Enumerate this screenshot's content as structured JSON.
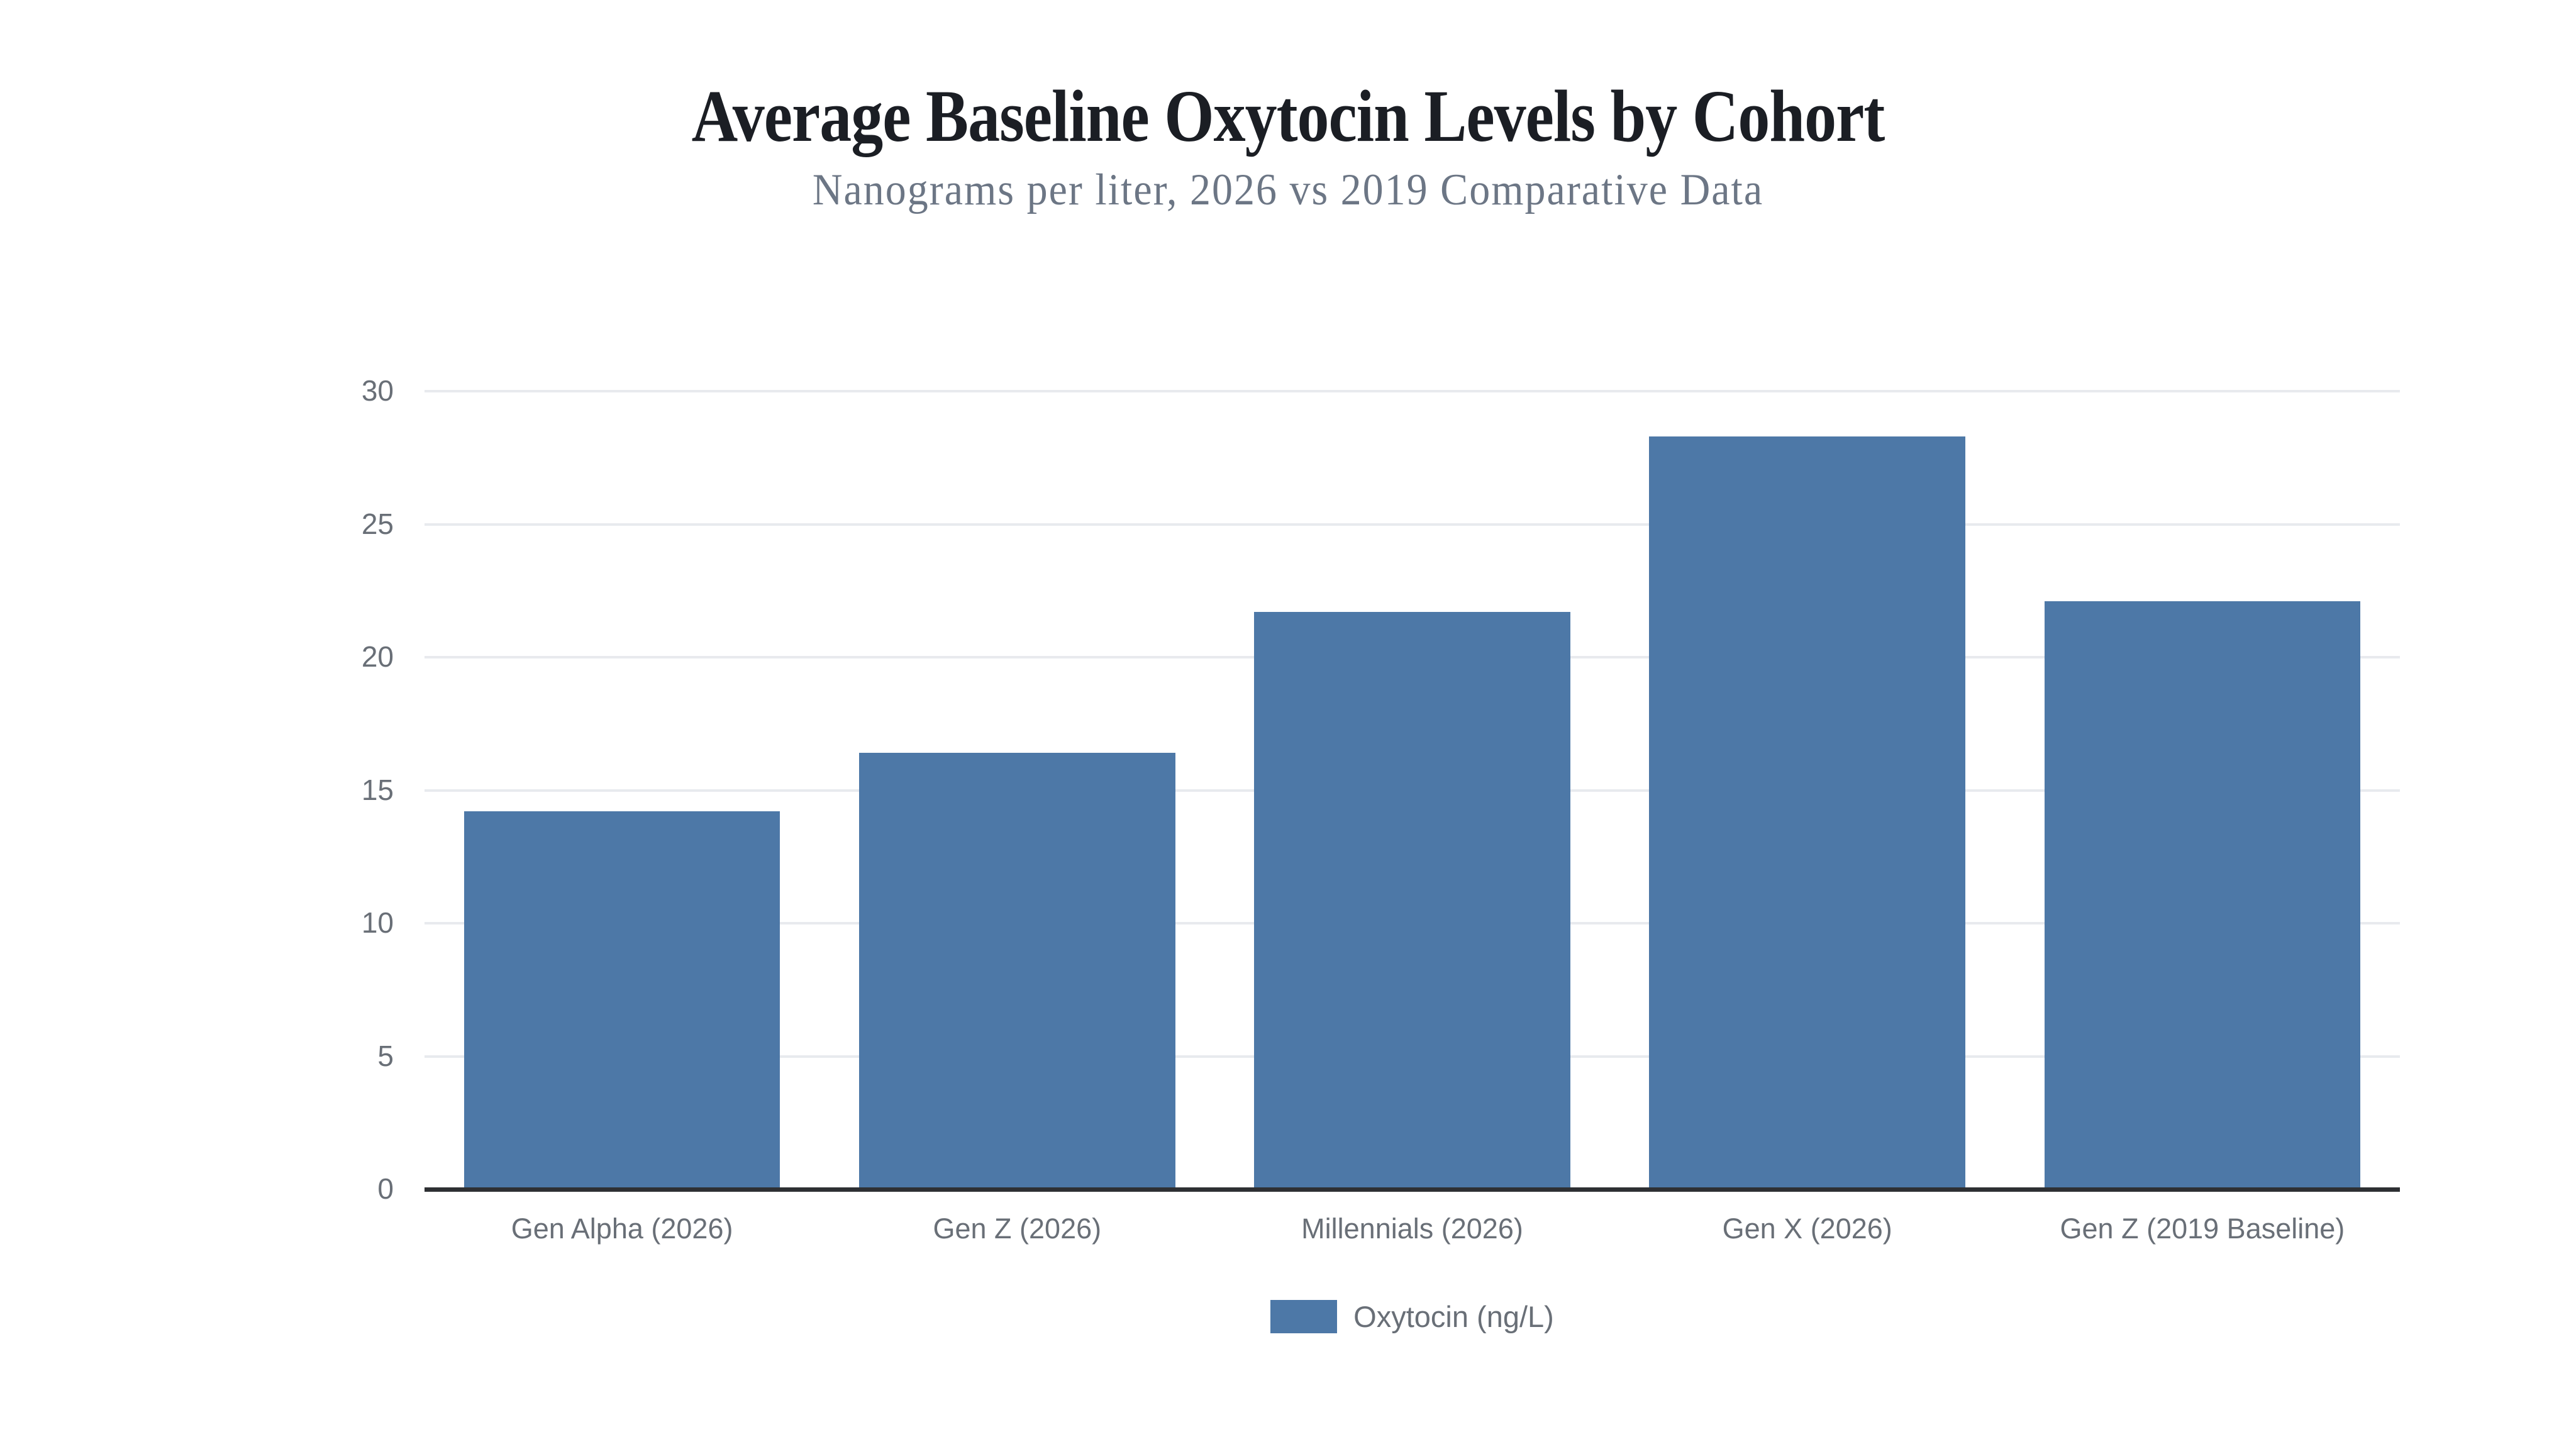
{
  "chart_data": {
    "type": "bar",
    "title": "Average Baseline Oxytocin Levels by Cohort",
    "subtitle": "Nanograms per liter, 2026 vs 2019 Comparative Data",
    "categories": [
      "Gen Alpha (2026)",
      "Gen Z (2026)",
      "Millennials (2026)",
      "Gen X (2026)",
      "Gen Z (2019 Baseline)"
    ],
    "values": [
      14.2,
      16.4,
      21.7,
      28.3,
      22.1
    ],
    "series": [
      {
        "name": "Oxytocin (ng/L)",
        "values": [
          14.2,
          16.4,
          21.7,
          28.3,
          22.1
        ]
      }
    ],
    "xlabel": "",
    "ylabel": "",
    "ylim": [
      0,
      30
    ],
    "yticks": [
      0,
      5,
      10,
      15,
      20,
      25,
      30
    ],
    "grid": true,
    "legend": {
      "label": "Oxytocin (ng/L)",
      "position": "bottom"
    },
    "colors": {
      "bar": "#4d78a7",
      "grid": "#e8eaee",
      "axis_line": "#2e3033",
      "tick_text": "#696f77",
      "title_text": "#1b1e24",
      "subtitle_text": "#6c7685",
      "background": "#ffffff"
    }
  }
}
